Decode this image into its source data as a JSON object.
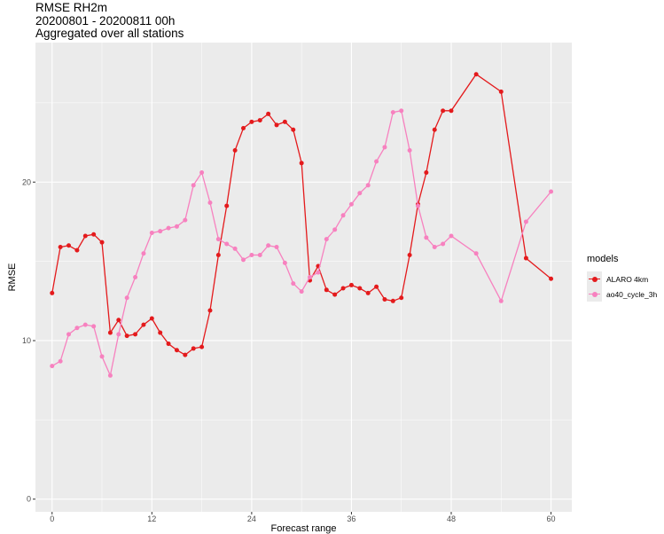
{
  "header": {
    "title": "RMSE RH2m",
    "subtitle": "20200801 - 20200811 00h",
    "caption": "Aggregated over all stations"
  },
  "chart_data": {
    "type": "line",
    "title": "RMSE RH2m",
    "subtitle": "20200801 - 20200811 00h",
    "xlabel": "Forecast range",
    "ylabel": "RMSE",
    "xlim": [
      -2,
      62.5
    ],
    "ylim": [
      -0.8,
      28.8
    ],
    "x_ticks": [
      0,
      12,
      24,
      36,
      48,
      60
    ],
    "x_tick_labels": [
      "0",
      "12",
      "24",
      "36",
      "48",
      "60"
    ],
    "y_ticks": [
      0,
      10,
      20
    ],
    "y_tick_labels": [
      "0",
      "10",
      "20"
    ],
    "grid": true,
    "legend_title": "models",
    "legend_position": "right",
    "series": [
      {
        "name": "ALARO 4km",
        "color": "#e41a1c",
        "x": [
          0,
          1,
          2,
          3,
          4,
          5,
          6,
          7,
          8,
          9,
          10,
          11,
          12,
          13,
          14,
          15,
          16,
          17,
          18,
          19,
          20,
          21,
          22,
          23,
          24,
          25,
          26,
          27,
          28,
          29,
          30,
          31,
          32,
          33,
          34,
          35,
          36,
          37,
          38,
          39,
          40,
          41,
          42,
          43,
          44,
          45,
          46,
          47,
          48,
          51,
          54,
          57,
          60
        ],
        "y": [
          13.0,
          15.9,
          16.0,
          15.7,
          16.6,
          16.7,
          16.2,
          10.5,
          11.3,
          10.3,
          10.4,
          11.0,
          11.4,
          10.5,
          9.8,
          9.4,
          9.1,
          9.5,
          9.6,
          11.9,
          15.4,
          18.5,
          22.0,
          23.4,
          23.8,
          23.9,
          24.3,
          23.6,
          23.8,
          23.3,
          21.2,
          13.8,
          14.7,
          13.2,
          12.9,
          13.3,
          13.5,
          13.3,
          13.0,
          13.4,
          12.6,
          12.5,
          12.7,
          15.4,
          18.6,
          20.6,
          23.3,
          24.5,
          24.5,
          26.8,
          25.7,
          15.2,
          13.9
        ]
      },
      {
        "name": "ao40_cycle_3h",
        "color": "#f781bf",
        "x": [
          0,
          1,
          2,
          3,
          4,
          5,
          6,
          7,
          8,
          9,
          10,
          11,
          12,
          13,
          14,
          15,
          16,
          17,
          18,
          19,
          20,
          21,
          22,
          23,
          24,
          25,
          26,
          27,
          28,
          29,
          30,
          31,
          32,
          33,
          34,
          35,
          36,
          37,
          38,
          39,
          40,
          41,
          42,
          43,
          44,
          45,
          46,
          47,
          48,
          51,
          54,
          57,
          60
        ],
        "y": [
          8.4,
          8.7,
          10.4,
          10.8,
          11.0,
          10.9,
          9.0,
          7.8,
          10.4,
          12.7,
          14.0,
          15.5,
          16.8,
          16.9,
          17.1,
          17.2,
          17.6,
          19.8,
          20.6,
          18.7,
          16.4,
          16.1,
          15.8,
          15.1,
          15.4,
          15.4,
          16.0,
          15.9,
          14.9,
          13.6,
          13.1,
          14.0,
          14.3,
          16.4,
          17.0,
          17.9,
          18.6,
          19.3,
          19.8,
          21.3,
          22.2,
          24.4,
          24.5,
          22.0,
          18.5,
          16.5,
          15.9,
          16.1,
          16.6,
          15.5,
          12.5,
          17.5,
          19.4
        ]
      }
    ]
  }
}
